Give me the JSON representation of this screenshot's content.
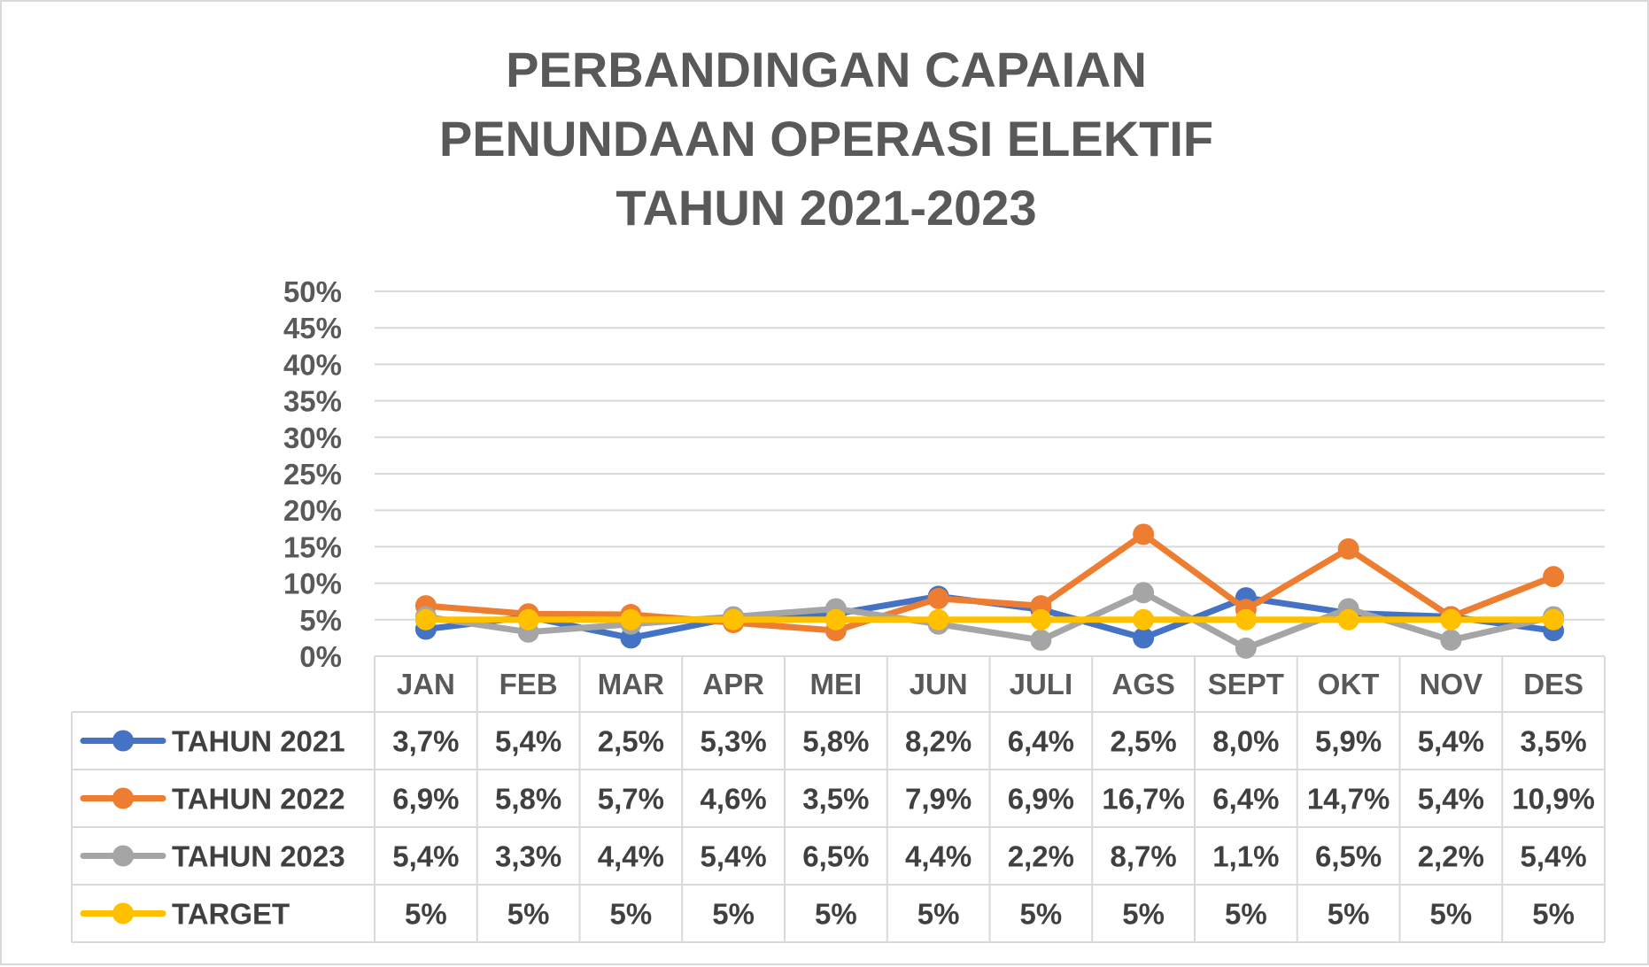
{
  "chart_data": {
    "type": "line",
    "title_lines": [
      "PERBANDINGAN CAPAIAN",
      "PENUNDAAN OPERASI ELEKTIF",
      "TAHUN 2021-2023"
    ],
    "xlabel": "",
    "ylabel": "",
    "ylim": [
      0,
      50
    ],
    "y_ticks": [
      0,
      5,
      10,
      15,
      20,
      25,
      30,
      35,
      40,
      45,
      50
    ],
    "y_tick_labels": [
      "0%",
      "5%",
      "10%",
      "15%",
      "20%",
      "25%",
      "30%",
      "35%",
      "40%",
      "45%",
      "50%"
    ],
    "grid": true,
    "legend": "data-table",
    "categories": [
      "JAN",
      "FEB",
      "MAR",
      "APR",
      "MEI",
      "JUN",
      "JULI",
      "AGS",
      "SEPT",
      "OKT",
      "NOV",
      "DES"
    ],
    "series": [
      {
        "name": "TAHUN 2021",
        "color": "#4472c4",
        "values": [
          3.7,
          5.4,
          2.5,
          5.3,
          5.8,
          8.2,
          6.4,
          2.5,
          8.0,
          5.9,
          5.4,
          3.5
        ],
        "labels": [
          "3,7%",
          "5,4%",
          "2,5%",
          "5,3%",
          "5,8%",
          "8,2%",
          "6,4%",
          "2,5%",
          "8,0%",
          "5,9%",
          "5,4%",
          "3,5%"
        ]
      },
      {
        "name": "TAHUN 2022",
        "color": "#ed7d31",
        "values": [
          6.9,
          5.8,
          5.7,
          4.6,
          3.5,
          7.9,
          6.9,
          16.7,
          6.4,
          14.7,
          5.4,
          10.9
        ],
        "labels": [
          "6,9%",
          "5,8%",
          "5,7%",
          "4,6%",
          "3,5%",
          "7,9%",
          "6,9%",
          "16,7%",
          "6,4%",
          "14,7%",
          "5,4%",
          "10,9%"
        ]
      },
      {
        "name": "TAHUN 2023",
        "color": "#a5a5a5",
        "values": [
          5.4,
          3.3,
          4.4,
          5.4,
          6.5,
          4.4,
          2.2,
          8.7,
          1.1,
          6.5,
          2.2,
          5.4
        ],
        "labels": [
          "5,4%",
          "3,3%",
          "4,4%",
          "5,4%",
          "6,5%",
          "4,4%",
          "2,2%",
          "8,7%",
          "1,1%",
          "6,5%",
          "2,2%",
          "5,4%"
        ]
      },
      {
        "name": "TARGET",
        "color": "#ffc000",
        "values": [
          5,
          5,
          5,
          5,
          5,
          5,
          5,
          5,
          5,
          5,
          5,
          5
        ],
        "labels": [
          "5%",
          "5%",
          "5%",
          "5%",
          "5%",
          "5%",
          "5%",
          "5%",
          "5%",
          "5%",
          "5%",
          "5%"
        ]
      }
    ]
  }
}
